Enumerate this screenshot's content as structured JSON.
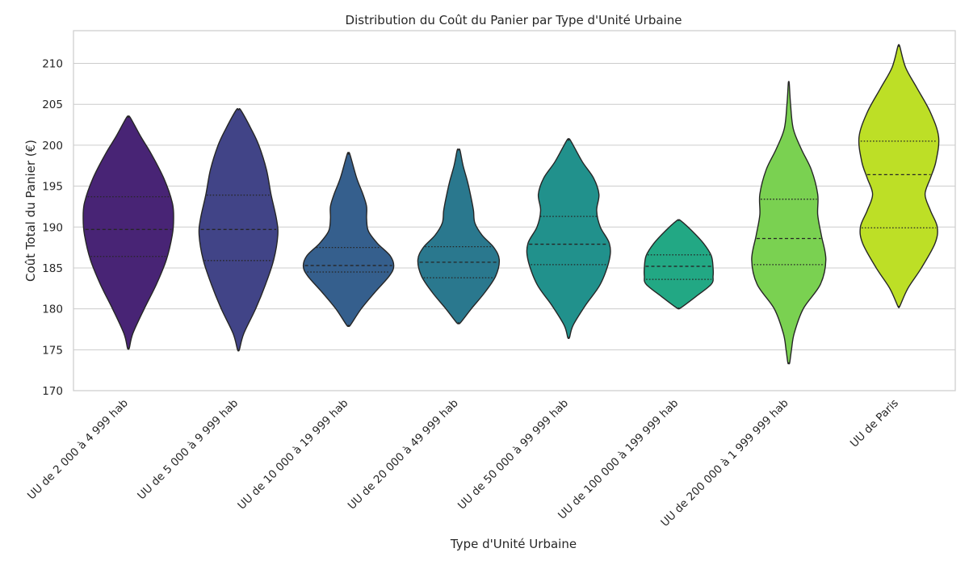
{
  "chart_data": {
    "type": "violin",
    "title": "Distribution du Coût du Panier par Type d'Unité Urbaine",
    "xlabel": "Type d'Unité Urbaine",
    "ylabel": "Coût Total du Panier (€)",
    "ylim": [
      170,
      214
    ],
    "yticks": [
      "170",
      "175",
      "180",
      "185",
      "190",
      "195",
      "200",
      "205",
      "210"
    ],
    "grid": "horizontal",
    "categories": [
      "UU de 2 000 à 4 999 hab",
      "UU de 5 000 à 9 999 hab",
      "UU de 10 000 à 19 999 hab",
      "UU de 20 000 à 49 999 hab",
      "UU de 50 000 à 99 999 hab",
      "UU de 100 000 à 199 999 hab",
      "UU de 200 000 à 1 999 999 hab",
      "UU de Paris"
    ],
    "colors": [
      "#482475",
      "#414487",
      "#355f8d",
      "#2a788e",
      "#21918c",
      "#22a884",
      "#7ad151",
      "#bddf26"
    ],
    "series": [
      {
        "min": 175.2,
        "q1": 186.4,
        "median": 189.7,
        "q3": 193.7,
        "max": 203.4,
        "density": [
          [
            175.2,
            0.02
          ],
          [
            177,
            0.1
          ],
          [
            180,
            0.35
          ],
          [
            183,
            0.62
          ],
          [
            186,
            0.84
          ],
          [
            189,
            0.97
          ],
          [
            191,
            1.0
          ],
          [
            193,
            0.97
          ],
          [
            196,
            0.78
          ],
          [
            199,
            0.5
          ],
          [
            201,
            0.28
          ],
          [
            203.4,
            0.04
          ]
        ]
      },
      {
        "min": 175.0,
        "q1": 185.9,
        "median": 189.7,
        "q3": 193.9,
        "max": 204.3,
        "density": [
          [
            175.0,
            0.02
          ],
          [
            177,
            0.12
          ],
          [
            180,
            0.38
          ],
          [
            183,
            0.6
          ],
          [
            186,
            0.78
          ],
          [
            189,
            0.87
          ],
          [
            191,
            0.84
          ],
          [
            194,
            0.72
          ],
          [
            197,
            0.62
          ],
          [
            200,
            0.45
          ],
          [
            202,
            0.28
          ],
          [
            204.3,
            0.05
          ]
        ]
      },
      {
        "min": 178.0,
        "q1": 184.5,
        "median": 185.3,
        "q3": 187.5,
        "max": 198.9,
        "density": [
          [
            178.0,
            0.04
          ],
          [
            180,
            0.28
          ],
          [
            182,
            0.58
          ],
          [
            184,
            0.9
          ],
          [
            185.2,
            1.0
          ],
          [
            186.5,
            0.92
          ],
          [
            188,
            0.64
          ],
          [
            189.5,
            0.44
          ],
          [
            191,
            0.4
          ],
          [
            192.5,
            0.4
          ],
          [
            194,
            0.32
          ],
          [
            196,
            0.18
          ],
          [
            198.9,
            0.03
          ]
        ]
      },
      {
        "min": 178.3,
        "q1": 183.8,
        "median": 185.7,
        "q3": 187.6,
        "max": 199.4,
        "density": [
          [
            178.3,
            0.04
          ],
          [
            180,
            0.28
          ],
          [
            182,
            0.58
          ],
          [
            184,
            0.82
          ],
          [
            186,
            0.9
          ],
          [
            187.5,
            0.78
          ],
          [
            189,
            0.52
          ],
          [
            190.5,
            0.36
          ],
          [
            192,
            0.33
          ],
          [
            193.5,
            0.28
          ],
          [
            195.5,
            0.2
          ],
          [
            197.5,
            0.1
          ],
          [
            199.4,
            0.03
          ]
        ]
      },
      {
        "min": 176.5,
        "q1": 185.4,
        "median": 187.9,
        "q3": 191.3,
        "max": 200.6,
        "density": [
          [
            176.5,
            0.02
          ],
          [
            178,
            0.1
          ],
          [
            180.5,
            0.38
          ],
          [
            183,
            0.7
          ],
          [
            186,
            0.9
          ],
          [
            188,
            0.9
          ],
          [
            190,
            0.7
          ],
          [
            192,
            0.62
          ],
          [
            194,
            0.67
          ],
          [
            196,
            0.55
          ],
          [
            198,
            0.3
          ],
          [
            200.6,
            0.04
          ]
        ]
      },
      {
        "min": 180.1,
        "q1": 183.6,
        "median": 185.2,
        "q3": 186.6,
        "max": 190.8,
        "density": [
          [
            180.1,
            0.04
          ],
          [
            181.5,
            0.38
          ],
          [
            183,
            0.72
          ],
          [
            184,
            0.76
          ],
          [
            185,
            0.76
          ],
          [
            186.5,
            0.72
          ],
          [
            188,
            0.55
          ],
          [
            189.5,
            0.3
          ],
          [
            190.8,
            0.04
          ]
        ]
      },
      {
        "min": 173.4,
        "q1": 185.4,
        "median": 188.6,
        "q3": 193.4,
        "max": 207.6,
        "density": [
          [
            173.4,
            0.02
          ],
          [
            175,
            0.06
          ],
          [
            177,
            0.12
          ],
          [
            180,
            0.32
          ],
          [
            183,
            0.7
          ],
          [
            186,
            0.82
          ],
          [
            189,
            0.72
          ],
          [
            191.5,
            0.64
          ],
          [
            194,
            0.64
          ],
          [
            197,
            0.5
          ],
          [
            199.5,
            0.28
          ],
          [
            202,
            0.1
          ],
          [
            205,
            0.04
          ],
          [
            207.6,
            0.01
          ]
        ]
      },
      {
        "min": 180.3,
        "q1": 189.9,
        "median": 196.4,
        "q3": 200.5,
        "max": 212.1,
        "density": [
          [
            180.3,
            0.02
          ],
          [
            182.5,
            0.2
          ],
          [
            185,
            0.5
          ],
          [
            188,
            0.8
          ],
          [
            190,
            0.85
          ],
          [
            192,
            0.7
          ],
          [
            194,
            0.58
          ],
          [
            196,
            0.7
          ],
          [
            198,
            0.82
          ],
          [
            201,
            0.88
          ],
          [
            204,
            0.7
          ],
          [
            207,
            0.4
          ],
          [
            209.5,
            0.15
          ],
          [
            212.1,
            0.02
          ]
        ]
      }
    ]
  }
}
